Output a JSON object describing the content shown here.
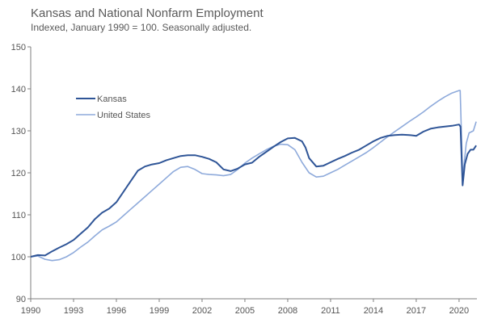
{
  "chart_data": {
    "type": "line",
    "title": "Kansas and National Nonfarm Employment",
    "subtitle": "Indexed, January 1990 = 100. Seasonally adjusted.",
    "xlabel": "",
    "ylabel": "",
    "xlim": [
      1990,
      2021.25
    ],
    "ylim": [
      90,
      150
    ],
    "x_ticks": [
      1990,
      1993,
      1996,
      1999,
      2002,
      2005,
      2008,
      2011,
      2014,
      2017,
      2020
    ],
    "x_tick_labels": [
      "1990",
      "1993",
      "1996",
      "1999",
      "2002",
      "2005",
      "2008",
      "2011",
      "2014",
      "2017",
      "2020"
    ],
    "y_ticks": [
      90,
      100,
      110,
      120,
      130,
      140,
      150
    ],
    "y_tick_labels": [
      "90",
      "100",
      "110",
      "120",
      "130",
      "140",
      "150"
    ],
    "grid": false,
    "legend_position": "upper-left",
    "series": [
      {
        "name": "Kansas",
        "color": "#2f5597",
        "points": [
          [
            1990,
            100
          ],
          [
            1990.5,
            100.4
          ],
          [
            1991,
            100.3
          ],
          [
            1991.5,
            101.3
          ],
          [
            1992,
            102.2
          ],
          [
            1992.5,
            103
          ],
          [
            1993,
            104
          ],
          [
            1993.5,
            105.5
          ],
          [
            1994,
            107
          ],
          [
            1994.5,
            109
          ],
          [
            1995,
            110.5
          ],
          [
            1995.5,
            111.5
          ],
          [
            1996,
            113
          ],
          [
            1996.5,
            115.5
          ],
          [
            1997,
            118
          ],
          [
            1997.5,
            120.5
          ],
          [
            1998,
            121.5
          ],
          [
            1998.5,
            122
          ],
          [
            1999,
            122.3
          ],
          [
            1999.5,
            123
          ],
          [
            2000,
            123.5
          ],
          [
            2000.5,
            124
          ],
          [
            2001,
            124.2
          ],
          [
            2001.5,
            124.2
          ],
          [
            2002,
            123.8
          ],
          [
            2002.5,
            123.3
          ],
          [
            2003,
            122.5
          ],
          [
            2003.5,
            120.8
          ],
          [
            2004,
            120.4
          ],
          [
            2004.5,
            121
          ],
          [
            2005,
            122
          ],
          [
            2005.5,
            122.4
          ],
          [
            2006,
            123.8
          ],
          [
            2006.5,
            125
          ],
          [
            2007,
            126.2
          ],
          [
            2007.5,
            127.3
          ],
          [
            2008,
            128.2
          ],
          [
            2008.5,
            128.3
          ],
          [
            2009,
            127.5
          ],
          [
            2009.25,
            126
          ],
          [
            2009.5,
            123.5
          ],
          [
            2010,
            121.5
          ],
          [
            2010.5,
            121.7
          ],
          [
            2011,
            122.5
          ],
          [
            2011.5,
            123.3
          ],
          [
            2012,
            124
          ],
          [
            2012.5,
            124.8
          ],
          [
            2013,
            125.5
          ],
          [
            2013.5,
            126.5
          ],
          [
            2014,
            127.5
          ],
          [
            2014.5,
            128.3
          ],
          [
            2015,
            128.8
          ],
          [
            2015.5,
            129
          ],
          [
            2016,
            129.1
          ],
          [
            2016.5,
            129
          ],
          [
            2017,
            128.8
          ],
          [
            2017.5,
            129.8
          ],
          [
            2018,
            130.5
          ],
          [
            2018.5,
            130.8
          ],
          [
            2019,
            131
          ],
          [
            2019.5,
            131.2
          ],
          [
            2020,
            131.5
          ],
          [
            2020.1,
            131
          ],
          [
            2020.25,
            117
          ],
          [
            2020.4,
            122
          ],
          [
            2020.6,
            124.5
          ],
          [
            2020.8,
            125.5
          ],
          [
            2021,
            125.5
          ],
          [
            2021.2,
            126.5
          ]
        ]
      },
      {
        "name": "United States",
        "color": "#8eaadb",
        "points": [
          [
            1990,
            100
          ],
          [
            1990.5,
            100.2
          ],
          [
            1991,
            99.4
          ],
          [
            1991.5,
            99.1
          ],
          [
            1992,
            99.3
          ],
          [
            1992.5,
            100
          ],
          [
            1993,
            101
          ],
          [
            1993.5,
            102.3
          ],
          [
            1994,
            103.5
          ],
          [
            1994.5,
            105
          ],
          [
            1995,
            106.4
          ],
          [
            1995.5,
            107.3
          ],
          [
            1996,
            108.3
          ],
          [
            1996.5,
            109.8
          ],
          [
            1997,
            111.3
          ],
          [
            1997.5,
            112.8
          ],
          [
            1998,
            114.3
          ],
          [
            1998.5,
            115.8
          ],
          [
            1999,
            117.3
          ],
          [
            1999.5,
            118.8
          ],
          [
            2000,
            120.3
          ],
          [
            2000.5,
            121.3
          ],
          [
            2001,
            121.5
          ],
          [
            2001.5,
            120.8
          ],
          [
            2002,
            119.8
          ],
          [
            2002.5,
            119.6
          ],
          [
            2003,
            119.5
          ],
          [
            2003.5,
            119.3
          ],
          [
            2004,
            119.6
          ],
          [
            2004.5,
            120.8
          ],
          [
            2005,
            122.3
          ],
          [
            2005.5,
            123.5
          ],
          [
            2006,
            124.5
          ],
          [
            2006.5,
            125.5
          ],
          [
            2007,
            126.3
          ],
          [
            2007.5,
            126.8
          ],
          [
            2008,
            126.7
          ],
          [
            2008.5,
            125.5
          ],
          [
            2009,
            122.5
          ],
          [
            2009.5,
            120
          ],
          [
            2010,
            119
          ],
          [
            2010.5,
            119.2
          ],
          [
            2011,
            120
          ],
          [
            2011.5,
            120.8
          ],
          [
            2012,
            121.8
          ],
          [
            2012.5,
            122.8
          ],
          [
            2013,
            123.8
          ],
          [
            2013.5,
            124.8
          ],
          [
            2014,
            126
          ],
          [
            2014.5,
            127.3
          ],
          [
            2015,
            128.6
          ],
          [
            2015.5,
            129.8
          ],
          [
            2016,
            131
          ],
          [
            2016.5,
            132.2
          ],
          [
            2017,
            133.3
          ],
          [
            2017.5,
            134.5
          ],
          [
            2018,
            135.8
          ],
          [
            2018.5,
            137
          ],
          [
            2019,
            138.1
          ],
          [
            2019.5,
            139
          ],
          [
            2020,
            139.6
          ],
          [
            2020.08,
            139.6
          ],
          [
            2020.25,
            119.5
          ],
          [
            2020.35,
            122
          ],
          [
            2020.5,
            127
          ],
          [
            2020.7,
            129.5
          ],
          [
            2021,
            130
          ],
          [
            2021.2,
            132.2
          ]
        ]
      }
    ]
  }
}
